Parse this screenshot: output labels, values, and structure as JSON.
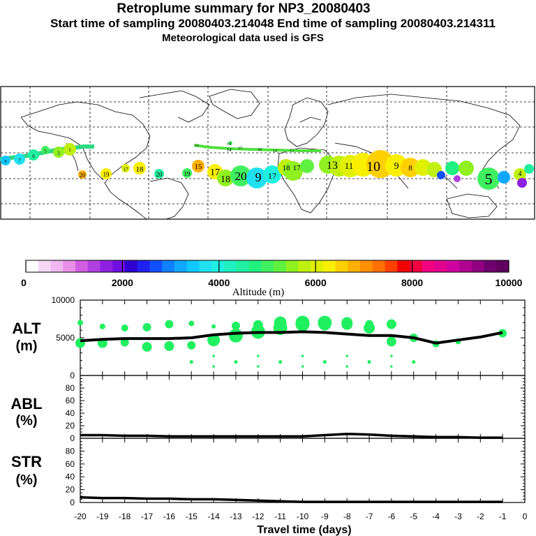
{
  "header": {
    "title": "Retroplume summary for NP3_20080403",
    "line2": "Start time of sampling 20080403.214048     End time of sampling 20080403.214311",
    "line3": "Meteorological data used is GFS"
  },
  "map": {
    "plume_labels": [
      "1",
      "3",
      "5",
      "6",
      "7",
      "8",
      "9",
      "10",
      "11",
      "12",
      "13",
      "14",
      "15",
      "16",
      "17",
      "18",
      "19",
      "20"
    ],
    "blob_days": [
      20,
      19,
      18,
      17,
      16,
      15,
      14,
      13,
      12,
      11,
      10,
      9,
      8,
      7,
      6,
      5,
      4,
      3,
      2,
      1
    ]
  },
  "colorbar": {
    "label": "Altitude (m)",
    "ticks": [
      "0",
      "2000",
      "4000",
      "6000",
      "8000",
      "10000"
    ],
    "colors": [
      "#ffffff",
      "#f4d8f4",
      "#f0b8f0",
      "#e890e8",
      "#d060e0",
      "#b040e0",
      "#9020e0",
      "#7010e0",
      "#3000d0",
      "#2020f0",
      "#1050ff",
      "#1080ff",
      "#10a8ff",
      "#10c8ff",
      "#20e0f0",
      "#20f0e0",
      "#20f0c0",
      "#20f0a0",
      "#20f080",
      "#40f060",
      "#60f040",
      "#90f020",
      "#c0f010",
      "#e0f000",
      "#f8f000",
      "#ffd000",
      "#ffb000",
      "#ff9000",
      "#ff7000",
      "#ff4000",
      "#f00000",
      "#f00040",
      "#f00080",
      "#e00090",
      "#d000a0",
      "#b00090",
      "#900080",
      "#700070",
      "#600060"
    ]
  },
  "panels": {
    "alt": {
      "label_top": "ALT",
      "label_bottom": "(m)",
      "yticks": [
        "10000",
        "5000",
        "0"
      ]
    },
    "abl": {
      "label_top": "ABL",
      "label_bottom": "(%)",
      "yticks": [
        "80",
        "60",
        "40",
        "20",
        "0"
      ]
    },
    "str": {
      "label_top": "STR",
      "label_bottom": "(%)",
      "yticks": [
        "80",
        "60",
        "40",
        "20",
        "0"
      ]
    }
  },
  "chart_data": {
    "type": "line",
    "xlabel": "Travel time (days)",
    "x": [
      -20,
      -19,
      -18,
      -17,
      -16,
      -15,
      -14,
      -13,
      -12,
      -11,
      -10,
      -9,
      -8,
      -7,
      -6,
      -5,
      -4,
      -3,
      -2,
      -1
    ],
    "x_tick_labels": [
      "-20",
      "-19",
      "-18",
      "-17",
      "-16",
      "-15",
      "-14",
      "-13",
      "-12",
      "-11",
      "-10",
      "-9",
      "-8",
      "-7",
      "-6",
      "-5",
      "-4",
      "-3",
      "-2",
      "-1",
      "0"
    ],
    "xlim": [
      -20,
      0
    ],
    "series": [
      {
        "name": "ALT",
        "ylabel": "(m)",
        "ylim": [
          0,
          10000
        ],
        "values": [
          4600,
          4800,
          4900,
          4900,
          4900,
          5000,
          5400,
          5600,
          5700,
          5700,
          5800,
          5700,
          5500,
          5300,
          5300,
          5000,
          4300,
          4700,
          5100,
          5700
        ]
      },
      {
        "name": "ABL",
        "ylabel": "(%)",
        "ylim": [
          0,
          100
        ],
        "values": [
          5,
          5,
          4,
          4,
          3,
          3,
          3,
          3,
          3,
          3,
          3,
          5,
          7,
          6,
          4,
          3,
          2,
          2,
          1,
          1
        ]
      },
      {
        "name": "STR",
        "ylabel": "(%)",
        "ylim": [
          0,
          100
        ],
        "values": [
          8,
          7,
          7,
          6,
          6,
          5,
          5,
          4,
          3,
          2,
          1,
          1,
          1,
          1,
          1,
          1,
          1,
          1,
          1,
          1
        ]
      }
    ],
    "alt_bubbles_upper": [
      7000,
      6500,
      6300,
      6400,
      6800,
      6900,
      6500,
      6600,
      6700,
      7000,
      7000,
      7000,
      7000,
      6800,
      6800,
      null,
      null,
      null,
      null,
      null
    ],
    "alt_bubbles_lower": [
      4300,
      4300,
      4400,
      3800,
      3900,
      4000,
      4700,
      5300,
      5800,
      6300,
      6800,
      6800,
      6800,
      6300,
      4500,
      5000,
      4200,
      4500,
      null,
      5600
    ],
    "colorbar": {
      "label": "Altitude (m)",
      "range": [
        0,
        10000
      ]
    }
  }
}
